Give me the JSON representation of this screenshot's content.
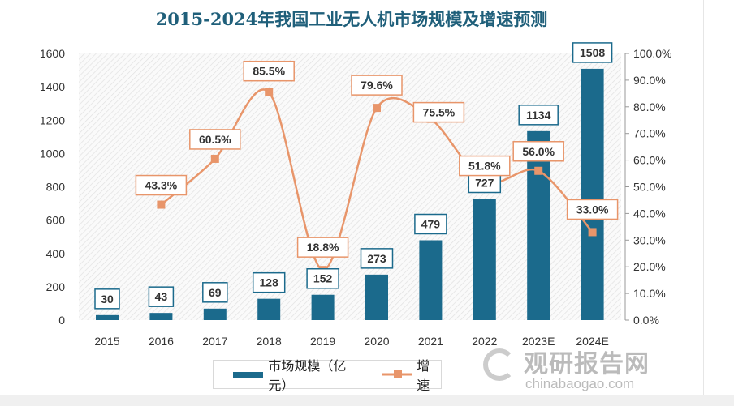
{
  "chart_data": {
    "type": "bar+line",
    "title": "2015-2024年我国工业无人机市场规模及增速预测",
    "categories": [
      "2015",
      "2016",
      "2017",
      "2018",
      "2019",
      "2020",
      "2021",
      "2022",
      "2023E",
      "2024E"
    ],
    "series": [
      {
        "name": "市场规模（亿元）",
        "type": "bar",
        "axis": "left",
        "color": "#1b6a8c",
        "values": [
          30,
          43,
          69,
          128,
          152,
          273,
          479,
          727,
          1134,
          1508
        ],
        "labels": [
          "30",
          "43",
          "69",
          "128",
          "152",
          "273",
          "479",
          "727",
          "1134",
          "1508"
        ]
      },
      {
        "name": "增速",
        "type": "line",
        "axis": "right",
        "color": "#e8956a",
        "values": [
          null,
          43.3,
          60.5,
          85.5,
          18.8,
          79.6,
          75.5,
          51.8,
          56.0,
          33.0
        ],
        "labels": [
          "",
          "43.3%",
          "60.5%",
          "85.5%",
          "18.8%",
          "79.6%",
          "75.5%",
          "51.8%",
          "56.0%",
          "33.0%"
        ]
      }
    ],
    "yleft": {
      "range": [
        0,
        1600
      ],
      "ticks": [
        "0",
        "200",
        "400",
        "600",
        "800",
        "1000",
        "1200",
        "1400",
        "1600"
      ]
    },
    "yright": {
      "range": [
        0,
        100
      ],
      "ticks": [
        "0.0%",
        "10.0%",
        "20.0%",
        "30.0%",
        "40.0%",
        "50.0%",
        "60.0%",
        "70.0%",
        "80.0%",
        "90.0%",
        "100.0%"
      ]
    },
    "legend_position": "bottom",
    "grid": false
  },
  "legend": {
    "bar": "市场规模（亿元）",
    "line": "增速"
  },
  "watermark": {
    "cn": "观研报告网",
    "en": "chinabaogao.com"
  }
}
